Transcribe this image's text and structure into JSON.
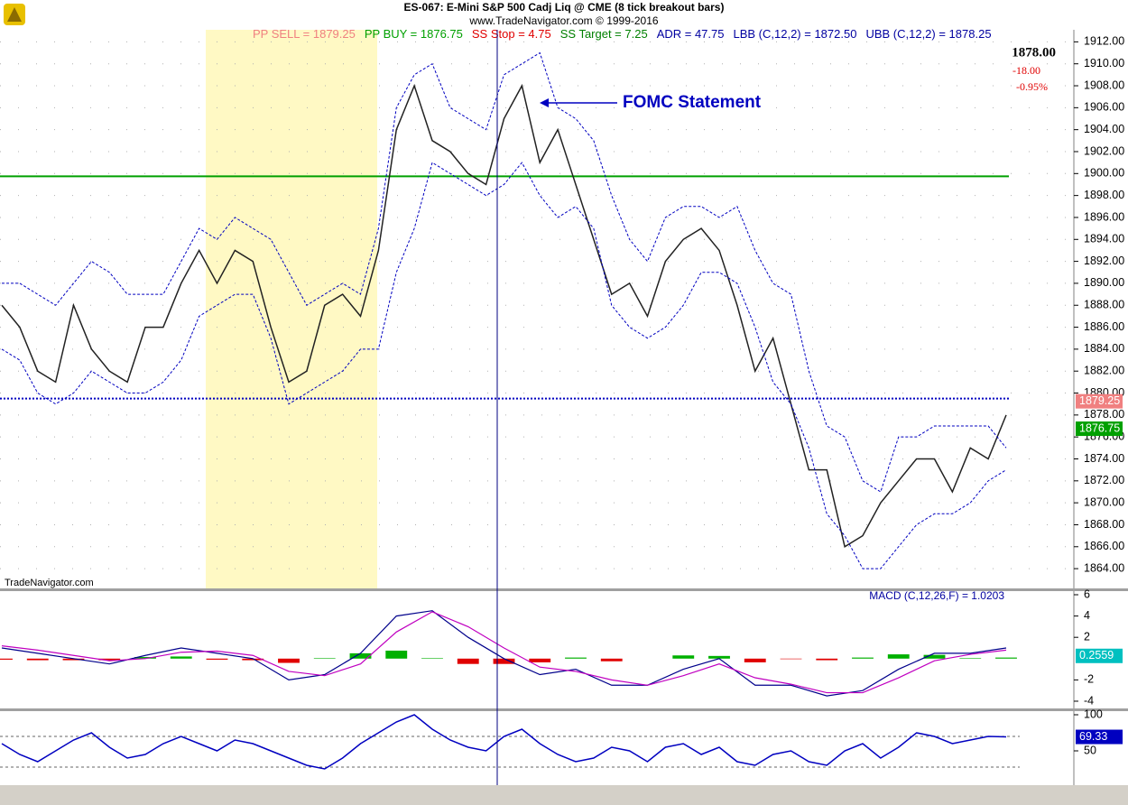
{
  "chart_data": [
    {
      "type": "line",
      "title": "ES-067:  E-Mini S&P 500 Cadj Liq @ CME  (8 tick breakout bars)",
      "subtitle": "www.TradeNavigator.com © 1999-2016",
      "stats": [
        {
          "text": "PP SELL = 1879.25",
          "color": "#f08080"
        },
        {
          "text": "PP BUY = 1876.75",
          "color": "#00a000"
        },
        {
          "text": "SS Stop = 4.75",
          "color": "#e00000"
        },
        {
          "text": "SS Target = 7.25",
          "color": "#008000"
        },
        {
          "text": "ADR = 47.75",
          "color": "#0000a0"
        },
        {
          "text": "LBB (C,12,2) = 1872.50",
          "color": "#0000a0"
        },
        {
          "text": "UBB (C,12,2) = 1878.25",
          "color": "#0000a0"
        }
      ],
      "annotation": "FOMC Statement",
      "watermark": "TradeNavigator.com",
      "last_price": "1878.00",
      "change": "-18.00",
      "change_pct": "-0.95%",
      "price_markers": [
        1879.25,
        1876.75
      ],
      "price_marker_colors": [
        "#f08080",
        "#00a000"
      ],
      "hlines": [
        {
          "value": 1899.75,
          "color": "#00a000",
          "dash": "none"
        },
        {
          "value": 1879.5,
          "color": "#0000c0",
          "dash": "2 2"
        }
      ],
      "series": [
        {
          "color": "#222222",
          "values": [
            1888,
            1886,
            1882,
            1881,
            1888,
            1884,
            1882,
            1881,
            1886,
            1886,
            1890,
            1893,
            1890,
            1893,
            1892,
            1886,
            1881,
            1882,
            1888,
            1889,
            1887,
            1893,
            1904,
            1908,
            1903,
            1902,
            1900,
            1899,
            1905,
            1908,
            1901,
            1904,
            1899,
            1894,
            1889,
            1890,
            1887,
            1892,
            1894,
            1895,
            1893,
            1888,
            1882,
            1885,
            1879,
            1873,
            1873,
            1866,
            1867,
            1870,
            1872,
            1874,
            1874,
            1871,
            1875,
            1874,
            1878
          ]
        },
        {
          "color": "#0000c0",
          "values": [
            1890,
            1890,
            1889,
            1888,
            1890,
            1892,
            1891,
            1889,
            1889,
            1889,
            1892,
            1895,
            1894,
            1896,
            1895,
            1894,
            1891,
            1888,
            1889,
            1890,
            1889,
            1895,
            1906,
            1909,
            1910,
            1906,
            1905,
            1904,
            1909,
            1910,
            1911,
            1906,
            1905,
            1903,
            1898,
            1894,
            1892,
            1896,
            1897,
            1897,
            1896,
            1897,
            1893,
            1890,
            1889,
            1882,
            1877,
            1876,
            1872,
            1871,
            1876,
            1876,
            1877,
            1877,
            1877,
            1877,
            1875
          ]
        },
        {
          "color": "#0000c0",
          "values": [
            1884,
            1883,
            1880,
            1879,
            1880,
            1882,
            1881,
            1880,
            1880,
            1881,
            1883,
            1887,
            1888,
            1889,
            1889,
            1885,
            1879,
            1880,
            1881,
            1882,
            1884,
            1884,
            1891,
            1895,
            1901,
            1900,
            1899,
            1898,
            1899,
            1901,
            1898,
            1896,
            1897,
            1895,
            1888,
            1886,
            1885,
            1886,
            1888,
            1891,
            1891,
            1890,
            1886,
            1881,
            1879,
            1875,
            1869,
            1867,
            1864,
            1864,
            1866,
            1868,
            1869,
            1869,
            1870,
            1872,
            1873
          ]
        }
      ],
      "ylim": [
        1862.2,
        1913.1
      ],
      "yticks": [
        {
          "value": 1864,
          "label": "1864.00"
        },
        {
          "value": 1866,
          "label": "1866.00"
        },
        {
          "value": 1868,
          "label": "1868.00"
        },
        {
          "value": 1870,
          "label": "1870.00"
        },
        {
          "value": 1872,
          "label": "1872.00"
        },
        {
          "value": 1874,
          "label": "1874.00"
        },
        {
          "value": 1876,
          "label": "1876.00"
        },
        {
          "value": 1878,
          "label": "1878.00"
        },
        {
          "value": 1880,
          "label": "1880.00"
        },
        {
          "value": 1882,
          "label": "1882.00"
        },
        {
          "value": 1884,
          "label": "1884.00"
        },
        {
          "value": 1886,
          "label": "1886.00"
        },
        {
          "value": 1888,
          "label": "1888.00"
        },
        {
          "value": 1890,
          "label": "1890.00"
        },
        {
          "value": 1892,
          "label": "1892.00"
        },
        {
          "value": 1894,
          "label": "1894.00"
        },
        {
          "value": 1896,
          "label": "1896.00"
        },
        {
          "value": 1898,
          "label": "1898.00"
        },
        {
          "value": 1900,
          "label": "1900.00"
        },
        {
          "value": 1902,
          "label": "1902.00"
        },
        {
          "value": 1904,
          "label": "1904.00"
        },
        {
          "value": 1906,
          "label": "1906.00"
        },
        {
          "value": 1908,
          "label": "1908.00"
        },
        {
          "value": 1910,
          "label": "1910.00"
        },
        {
          "value": 1912,
          "label": "1912.00"
        }
      ],
      "grid": true
    },
    {
      "type": "macd",
      "title": "MACD (C,12,26,F) = 1.0203",
      "marker": 0.2559,
      "marker_color": "#00c0c0",
      "series": [
        {
          "color": "#00008b",
          "values": [
            1.0,
            0.5,
            0,
            -0.5,
            0.3,
            1.0,
            0.5,
            0,
            -2.0,
            -1.5,
            0.5,
            4.0,
            4.5,
            2.0,
            0,
            -1.5,
            -1.0,
            -2.5,
            -2.5,
            -1.0,
            0,
            -2.5,
            -2.5,
            -3.5,
            -3.0,
            -1.0,
            0.5,
            0.5,
            1.0
          ]
        },
        {
          "color": "#c000c0",
          "values": [
            1.2,
            0.8,
            0.3,
            -0.2,
            0,
            0.6,
            0.7,
            0.3,
            -1.2,
            -1.6,
            -0.5,
            2.5,
            4.4,
            3.0,
            1.0,
            -0.8,
            -1.2,
            -2.0,
            -2.5,
            -1.6,
            -0.5,
            -1.8,
            -2.4,
            -3.2,
            -3.2,
            -1.8,
            -0.2,
            0.4,
            0.8
          ]
        }
      ],
      "histogram": [
        -0.1,
        -0.15,
        -0.15,
        -0.15,
        0.15,
        0.2,
        -0.1,
        -0.15,
        -0.4,
        0.05,
        0.5,
        0.75,
        0.05,
        -0.5,
        -0.5,
        -0.35,
        0.1,
        -0.25,
        0,
        0.3,
        0.25,
        -0.35,
        -0.05,
        -0.15,
        0.1,
        0.4,
        0.35,
        0.05,
        0.1
      ],
      "histogram_colors": [
        "#00b000",
        "#e00000"
      ],
      "ylim": [
        -4.68,
        6.34
      ],
      "yticks": [
        6,
        4,
        2,
        -2,
        -4
      ]
    },
    {
      "type": "line",
      "marker": 69.33,
      "marker_color": "#0000c0",
      "ref_lines": [
        70,
        27.5
      ],
      "series": [
        {
          "color": "#0000c0",
          "values": [
            60,
            45,
            35,
            50,
            65,
            75,
            55,
            40,
            45,
            60,
            70,
            60,
            50,
            65,
            60,
            50,
            40,
            30,
            25,
            40,
            60,
            75,
            90,
            100,
            80,
            65,
            55,
            50,
            70,
            80,
            60,
            45,
            35,
            40,
            55,
            50,
            35,
            55,
            60,
            45,
            55,
            35,
            30,
            45,
            50,
            35,
            30,
            50,
            60,
            40,
            55,
            75,
            70,
            60,
            65,
            70,
            69.33
          ]
        }
      ],
      "ylim": [
        2.5,
        105
      ],
      "yticks": [
        100,
        50
      ]
    }
  ]
}
